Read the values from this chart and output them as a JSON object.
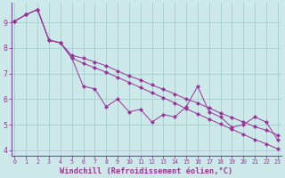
{
  "x": [
    0,
    1,
    2,
    3,
    4,
    5,
    6,
    7,
    8,
    9,
    10,
    11,
    12,
    13,
    14,
    15,
    16,
    17,
    18,
    19,
    20,
    21,
    22,
    23
  ],
  "line_mid": [
    9.05,
    9.3,
    9.5,
    8.3,
    8.2,
    7.6,
    6.5,
    6.4,
    5.7,
    6.0,
    5.5,
    5.6,
    5.1,
    5.4,
    5.3,
    5.7,
    6.5,
    5.5,
    5.3,
    4.9,
    5.0,
    5.3,
    5.1,
    4.4
  ],
  "line_upper": [
    9.05,
    9.3,
    9.5,
    8.3,
    8.2,
    7.7,
    7.6,
    7.45,
    7.3,
    7.1,
    6.9,
    6.75,
    6.55,
    6.38,
    6.2,
    6.0,
    5.85,
    5.65,
    5.45,
    5.28,
    5.1,
    4.92,
    4.78,
    4.6
  ],
  "line_lower": [
    9.05,
    9.3,
    9.5,
    8.3,
    8.2,
    7.6,
    7.4,
    7.22,
    7.05,
    6.85,
    6.65,
    6.45,
    6.25,
    6.05,
    5.85,
    5.62,
    5.42,
    5.22,
    5.02,
    4.82,
    4.62,
    4.42,
    4.25,
    4.05
  ],
  "line_color": "#993399",
  "bg_color": "#cce8e8",
  "grid_color": "#99cccc",
  "axis_line_color": "#9933cc",
  "xlabel": "Windchill (Refroidissement éolien,°C)",
  "ylim": [
    3.8,
    9.75
  ],
  "xlim": [
    -0.3,
    23.3
  ],
  "yticks": [
    4,
    5,
    6,
    7,
    8,
    9
  ],
  "xticks": [
    0,
    1,
    2,
    3,
    4,
    5,
    6,
    7,
    8,
    9,
    10,
    11,
    12,
    13,
    14,
    15,
    16,
    17,
    18,
    19,
    20,
    21,
    22,
    23
  ]
}
